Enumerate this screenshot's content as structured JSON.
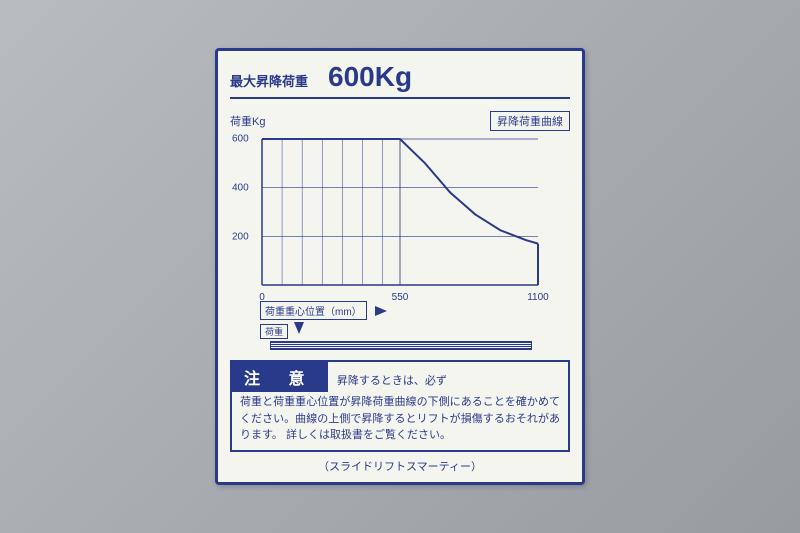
{
  "header": {
    "label": "最大昇降荷重",
    "value": "600Kg"
  },
  "chart": {
    "type": "area-curve",
    "ylabel": "荷重Kg",
    "curve_label": "昇降荷重曲線",
    "xlim": [
      0,
      1100
    ],
    "ylim": [
      0,
      600
    ],
    "yticks": [
      200,
      400,
      600
    ],
    "xticks": [
      0,
      550,
      1100
    ],
    "curve_points": [
      {
        "x": 0,
        "y": 600
      },
      {
        "x": 550,
        "y": 600
      },
      {
        "x": 650,
        "y": 500
      },
      {
        "x": 750,
        "y": 380
      },
      {
        "x": 850,
        "y": 290
      },
      {
        "x": 950,
        "y": 225
      },
      {
        "x": 1050,
        "y": 185
      },
      {
        "x": 1100,
        "y": 170
      }
    ],
    "colors": {
      "line": "#2a3a8a",
      "grid": "#2a3a8a",
      "axis": "#2a3a8a",
      "fill": "none",
      "background": "#f5f5f0"
    },
    "line_width": 2,
    "grid_width": 0.7,
    "hatch_lines_x": [
      0,
      80,
      160,
      240,
      320,
      400,
      480,
      550
    ]
  },
  "center_diagram": {
    "center_label": "荷重重心位置（mm）",
    "load_label": "荷重"
  },
  "caution": {
    "title": "注 意",
    "first_line": "昇降するときは、必ず",
    "body": "荷重と荷重重心位置が昇降荷重曲線の下側にあることを確かめてください。曲線の上側で昇降するとリフトが損傷するおそれがあります。\n詳しくは取扱書をご覧ください。"
  },
  "footer": "（スライドリフトスマーティー）"
}
